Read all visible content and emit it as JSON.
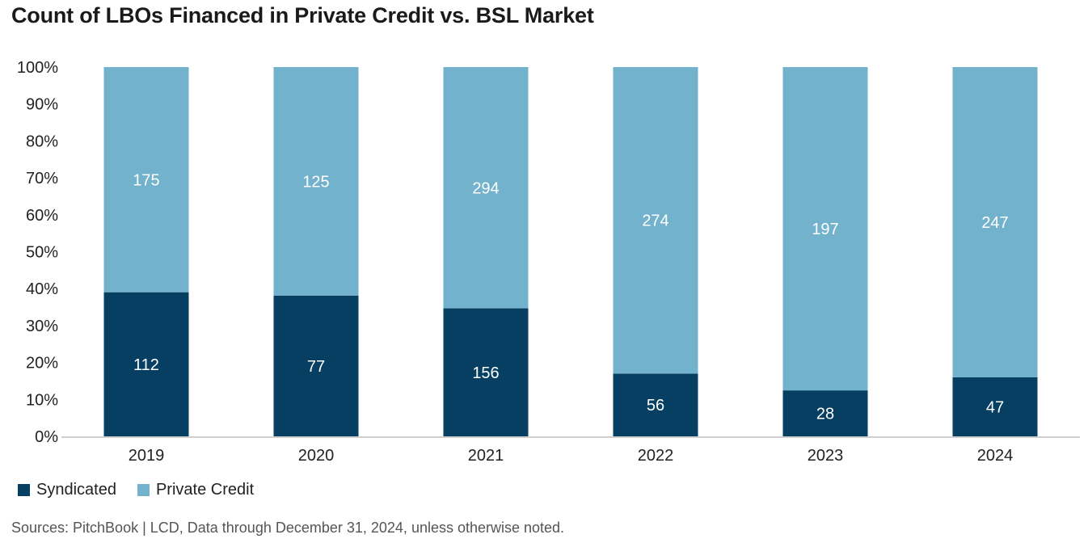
{
  "chart_data": {
    "type": "bar",
    "stacked": "percent",
    "title": "Count of LBOs Financed in Private Credit vs. BSL Market",
    "categories": [
      "2019",
      "2020",
      "2021",
      "2022",
      "2023",
      "2024"
    ],
    "series": [
      {
        "name": "Syndicated",
        "values": [
          112,
          77,
          156,
          56,
          28,
          47
        ],
        "color": "#063f61"
      },
      {
        "name": "Private Credit",
        "values": [
          175,
          125,
          294,
          274,
          197,
          247
        ],
        "color": "#73b2cd"
      }
    ],
    "y_ticks": [
      "0%",
      "10%",
      "20%",
      "30%",
      "40%",
      "50%",
      "60%",
      "70%",
      "80%",
      "90%",
      "100%"
    ],
    "ylim": [
      0,
      100
    ],
    "xlabel": "",
    "ylabel": "",
    "legend_position": "bottom-left",
    "source": "Sources: PitchBook | LCD, Data through December 31, 2024, unless otherwise noted."
  }
}
